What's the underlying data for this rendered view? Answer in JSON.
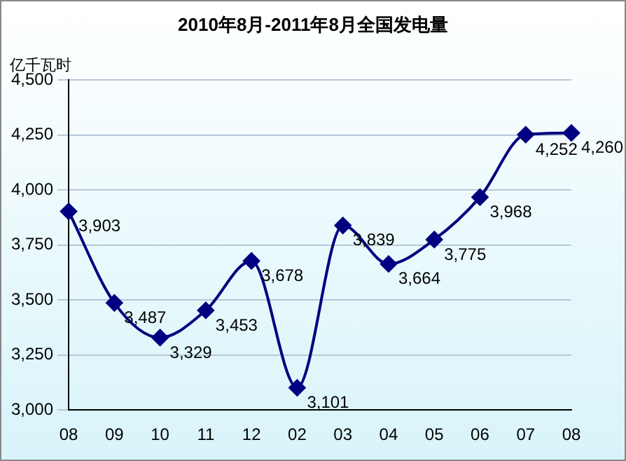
{
  "chart_data": {
    "type": "line",
    "title": "2010年8月-2011年8月全国发电量",
    "ylabel": "亿千瓦时",
    "categories": [
      "08",
      "09",
      "10",
      "11",
      "12",
      "02",
      "03",
      "04",
      "05",
      "06",
      "07",
      "08"
    ],
    "series": [
      {
        "color": "#000080",
        "values": [
          3903,
          3487,
          3329,
          3453,
          3678,
          3101,
          3839,
          3664,
          3775,
          3968,
          4252,
          4260
        ],
        "value_labels": [
          "3,903",
          "3,487",
          "3,329",
          "3,453",
          "3,678",
          "3,101",
          "3,839",
          "3,664",
          "3,775",
          "3,968",
          "4,252",
          "4,260"
        ]
      }
    ],
    "ylim": [
      3000,
      4500
    ],
    "yticks": [
      {
        "value": 3000,
        "label": "3,000"
      },
      {
        "value": 3250,
        "label": "3,250"
      },
      {
        "value": 3500,
        "label": "3,500"
      },
      {
        "value": 3750,
        "label": "3,750"
      },
      {
        "value": 4000,
        "label": "4,000"
      },
      {
        "value": 4250,
        "label": "4,250"
      },
      {
        "value": 4500,
        "label": "4,500"
      }
    ],
    "grid": "y",
    "legend": false,
    "marker": "diamond",
    "line_style": "solid"
  }
}
